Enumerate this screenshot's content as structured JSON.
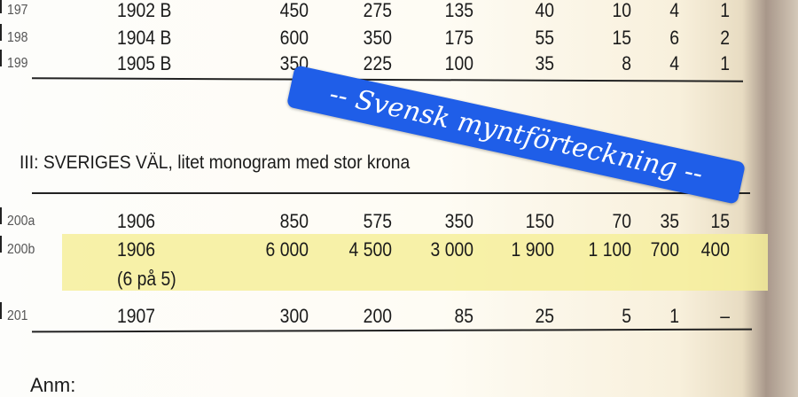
{
  "rows_top": [
    {
      "id": "197",
      "year": "1902 B",
      "values": [
        "450",
        "275",
        "135",
        "40",
        "10",
        "4",
        "1"
      ]
    },
    {
      "id": "198",
      "year": "1904 B",
      "values": [
        "600",
        "350",
        "175",
        "55",
        "15",
        "6",
        "2"
      ]
    },
    {
      "id": "199",
      "year": "1905 B",
      "values": [
        "350",
        "225",
        "100",
        "35",
        "8",
        "4",
        "1"
      ]
    }
  ],
  "section_heading": "III:  SVERIGES VÄL, litet monogram med stor krona",
  "rows_bottom": [
    {
      "id": "200a",
      "year": "1906",
      "values": [
        "850",
        "575",
        "350",
        "150",
        "70",
        "35",
        "15"
      ]
    },
    {
      "id": "200b",
      "year": "1906",
      "sub": "(6 på 5)",
      "values": [
        "6 000",
        "4 500",
        "3 000",
        "1 900",
        "1 100",
        "700",
        "400"
      ],
      "highlighted": true
    },
    {
      "id": "201",
      "year": "1907",
      "values": [
        "300",
        "200",
        "85",
        "25",
        "5",
        "1",
        "–"
      ]
    }
  ],
  "sticker": {
    "text": "-- Svensk myntförteckning --",
    "color": "#1f5ee8"
  },
  "highlight_color": "#f6ef9a",
  "note": "Anm:"
}
